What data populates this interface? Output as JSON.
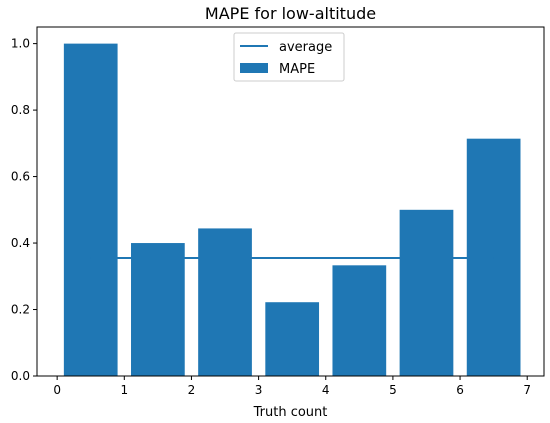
{
  "chart_data": {
    "type": "bar",
    "title": "MAPE for low-altitude",
    "xlabel": "Truth count",
    "ylabel": "",
    "xlim": [
      -0.3,
      7.25
    ],
    "ylim": [
      0.0,
      1.05
    ],
    "xticks": [
      0,
      1,
      2,
      3,
      4,
      5,
      6,
      7
    ],
    "yticks": [
      0.0,
      0.2,
      0.4,
      0.6,
      0.8,
      1.0
    ],
    "xtick_labels": [
      "0",
      "1",
      "2",
      "3",
      "4",
      "5",
      "6",
      "7"
    ],
    "ytick_labels": [
      "0.0",
      "0.2",
      "0.4",
      "0.6",
      "0.8",
      "1.0"
    ],
    "bar_color": "#1f77b4",
    "line_color": "#1f77b4",
    "grid": false,
    "legend_placement": "top-center",
    "series": [
      {
        "name": "MAPE",
        "type": "bar",
        "x": [
          0.5,
          1.5,
          2.5,
          3.5,
          4.5,
          5.5,
          6.5
        ],
        "values": [
          1.0,
          0.4,
          0.444,
          0.222,
          0.333,
          0.5,
          0.714
        ]
      },
      {
        "name": "average",
        "type": "line",
        "x": [
          0.5,
          6.5
        ],
        "values": [
          0.355,
          0.355
        ]
      }
    ],
    "legend": [
      "average",
      "MAPE"
    ]
  }
}
